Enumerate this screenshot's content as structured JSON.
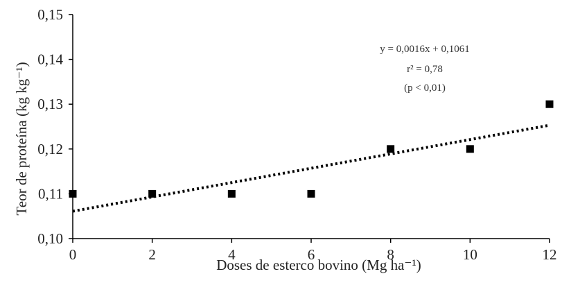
{
  "chart_data": {
    "type": "scatter",
    "x": [
      0,
      2,
      4,
      6,
      8,
      10,
      12
    ],
    "y": [
      0.11,
      0.11,
      0.11,
      0.11,
      0.12,
      0.12,
      0.13
    ],
    "xlabel": "Doses de esterco bovino (Mg ha⁻¹)",
    "ylabel": "Teor de proteína (kg kg⁻¹)",
    "xlim": [
      0,
      12
    ],
    "ylim": [
      0.1,
      0.15
    ],
    "x_ticks": [
      0,
      2,
      4,
      6,
      8,
      10,
      12
    ],
    "x_tick_labels": [
      "0",
      "2",
      "4",
      "6",
      "8",
      "10",
      "12"
    ],
    "y_ticks": [
      0.1,
      0.11,
      0.12,
      0.13,
      0.14,
      0.15
    ],
    "y_tick_labels": [
      "0,10",
      "0,11",
      "0,12",
      "0,13",
      "0,14",
      "0,15"
    ],
    "trendline": {
      "type": "linear",
      "slope": 0.0016,
      "intercept": 0.1061,
      "style": "dotted"
    },
    "annotations": [
      "y = 0,0016x + 0,1061",
      "r² = 0,78",
      "(p < 0,01)"
    ],
    "marker": "square",
    "colors": {
      "marker": "#000000",
      "trendline": "#000000",
      "axis": "#000000"
    },
    "grid": false,
    "legend": false
  }
}
